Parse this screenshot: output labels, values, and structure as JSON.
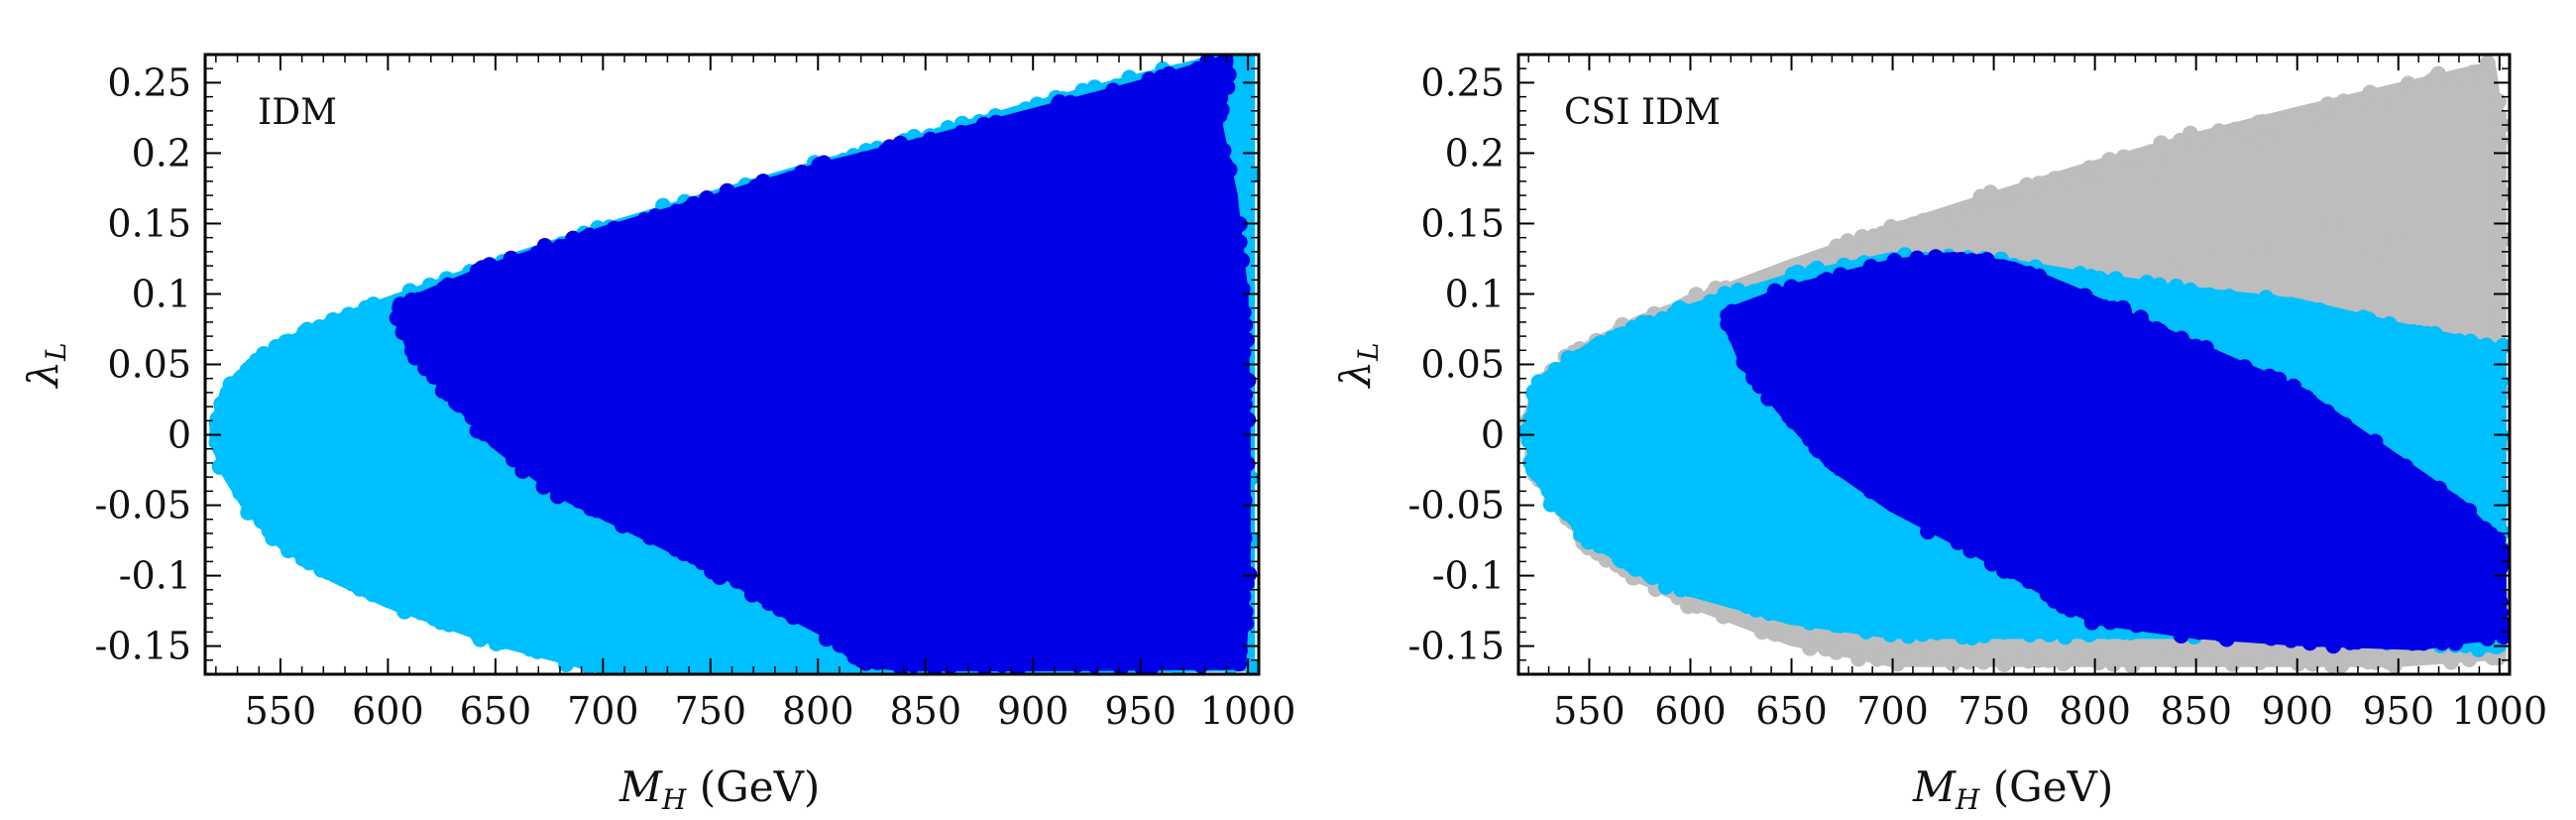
{
  "colors": {
    "background": "#ffffff",
    "frame": "#000000",
    "light_blue": "#00bfff",
    "dark_blue": "#0000e6",
    "gray": "#bdbdbd"
  },
  "chart_data": [
    {
      "type": "scatter",
      "panel_label": "IDM",
      "xlabel": "M_H (GeV)",
      "ylabel": "λ_L",
      "xlim": [
        515,
        1005
      ],
      "ylim": [
        -0.17,
        0.27
      ],
      "x_ticks": [
        550,
        600,
        650,
        700,
        750,
        800,
        850,
        900,
        950,
        1000
      ],
      "y_ticks": [
        -0.15,
        -0.1,
        -0.05,
        0,
        0.05,
        0.1,
        0.15,
        0.2,
        0.25
      ],
      "x_tick_labels": [
        "550",
        "600",
        "650",
        "700",
        "750",
        "800",
        "850",
        "900",
        "950",
        "1000"
      ],
      "y_tick_labels": [
        "-0.15",
        "-0.1",
        "-0.05",
        "0",
        "0.05",
        "0.1",
        "0.15",
        "0.2",
        "0.25"
      ],
      "grid": false,
      "regions": [
        {
          "color": "#00bfff",
          "boundary": [
            [
              520,
              0
            ],
            [
              525,
              0.03
            ],
            [
              535,
              0.045
            ],
            [
              550,
              0.062
            ],
            [
              575,
              0.08
            ],
            [
              600,
              0.093
            ],
            [
              650,
              0.12
            ],
            [
              700,
              0.145
            ],
            [
              750,
              0.168
            ],
            [
              800,
              0.19
            ],
            [
              850,
              0.21
            ],
            [
              900,
              0.232
            ],
            [
              950,
              0.252
            ],
            [
              1000,
              0.27
            ],
            [
              1000,
              -0.163
            ],
            [
              900,
              -0.165
            ],
            [
              800,
              -0.165
            ],
            [
              750,
              -0.165
            ],
            [
              700,
              -0.165
            ],
            [
              650,
              -0.145
            ],
            [
              600,
              -0.118
            ],
            [
              575,
              -0.1
            ],
            [
              550,
              -0.075
            ],
            [
              535,
              -0.05
            ],
            [
              525,
              -0.025
            ]
          ]
        },
        {
          "color": "#0000e6",
          "boundary": [
            [
              605,
              0.09
            ],
            [
              650,
              0.118
            ],
            [
              700,
              0.143
            ],
            [
              750,
              0.165
            ],
            [
              800,
              0.188
            ],
            [
              850,
              0.207
            ],
            [
              900,
              0.227
            ],
            [
              950,
              0.247
            ],
            [
              990,
              0.265
            ],
            [
              985,
              0.22
            ],
            [
              992,
              0.17
            ],
            [
              997,
              0.1
            ],
            [
              998,
              0
            ],
            [
              998,
              -0.1
            ],
            [
              996,
              -0.162
            ],
            [
              900,
              -0.163
            ],
            [
              840,
              -0.163
            ],
            [
              820,
              -0.16
            ],
            [
              805,
              -0.14
            ],
            [
              780,
              -0.12
            ],
            [
              760,
              -0.1
            ],
            [
              720,
              -0.07
            ],
            [
              680,
              -0.04
            ],
            [
              650,
              -0.005
            ],
            [
              630,
              0.03
            ],
            [
              612,
              0.06
            ]
          ]
        }
      ]
    },
    {
      "type": "scatter",
      "panel_label": "CSI IDM",
      "xlabel": "M_H (GeV)",
      "ylabel": "λ_L",
      "xlim": [
        515,
        1005
      ],
      "ylim": [
        -0.17,
        0.27
      ],
      "x_ticks": [
        550,
        600,
        650,
        700,
        750,
        800,
        850,
        900,
        950,
        1000
      ],
      "y_ticks": [
        -0.15,
        -0.1,
        -0.05,
        0,
        0.05,
        0.1,
        0.15,
        0.2,
        0.25
      ],
      "x_tick_labels": [
        "550",
        "600",
        "650",
        "700",
        "750",
        "800",
        "850",
        "900",
        "950",
        "1000"
      ],
      "y_tick_labels": [
        "-0.15",
        "-0.1",
        "-0.05",
        "0",
        "0.05",
        "0.1",
        "0.15",
        "0.2",
        "0.25"
      ],
      "grid": false,
      "regions": [
        {
          "color": "#bdbdbd",
          "boundary": [
            [
              520,
              0
            ],
            [
              525,
              0.03
            ],
            [
              535,
              0.045
            ],
            [
              550,
              0.062
            ],
            [
              575,
              0.08
            ],
            [
              600,
              0.093
            ],
            [
              650,
              0.12
            ],
            [
              700,
              0.145
            ],
            [
              750,
              0.168
            ],
            [
              800,
              0.19
            ],
            [
              850,
              0.21
            ],
            [
              900,
              0.228
            ],
            [
              950,
              0.245
            ],
            [
              995,
              0.26
            ],
            [
              1000,
              0.21
            ],
            [
              1000,
              -0.155
            ],
            [
              950,
              -0.16
            ],
            [
              900,
              -0.16
            ],
            [
              800,
              -0.16
            ],
            [
              750,
              -0.16
            ],
            [
              700,
              -0.16
            ],
            [
              650,
              -0.145
            ],
            [
              600,
              -0.118
            ],
            [
              575,
              -0.1
            ],
            [
              550,
              -0.075
            ],
            [
              535,
              -0.05
            ],
            [
              525,
              -0.025
            ]
          ]
        },
        {
          "color": "#00bfff",
          "boundary": [
            [
              520,
              0
            ],
            [
              525,
              0.03
            ],
            [
              535,
              0.045
            ],
            [
              550,
              0.06
            ],
            [
              575,
              0.075
            ],
            [
              600,
              0.088
            ],
            [
              650,
              0.11
            ],
            [
              700,
              0.125
            ],
            [
              750,
              0.122
            ],
            [
              800,
              0.11
            ],
            [
              850,
              0.1
            ],
            [
              900,
              0.092
            ],
            [
              950,
              0.075
            ],
            [
              1000,
              0.06
            ],
            [
              1000,
              -0.15
            ],
            [
              950,
              -0.145
            ],
            [
              900,
              -0.14
            ],
            [
              850,
              -0.14
            ],
            [
              800,
              -0.14
            ],
            [
              760,
              -0.14
            ],
            [
              700,
              -0.14
            ],
            [
              650,
              -0.13
            ],
            [
              600,
              -0.11
            ],
            [
              575,
              -0.095
            ],
            [
              550,
              -0.072
            ],
            [
              535,
              -0.048
            ],
            [
              525,
              -0.022
            ]
          ]
        },
        {
          "color": "#0000e6",
          "boundary": [
            [
              618,
              0.085
            ],
            [
              650,
              0.102
            ],
            [
              700,
              0.12
            ],
            [
              730,
              0.125
            ],
            [
              760,
              0.118
            ],
            [
              790,
              0.1
            ],
            [
              820,
              0.08
            ],
            [
              860,
              0.055
            ],
            [
              900,
              0.03
            ],
            [
              940,
              -0.01
            ],
            [
              980,
              -0.05
            ],
            [
              1000,
              -0.08
            ],
            [
              1000,
              -0.14
            ],
            [
              960,
              -0.148
            ],
            [
              900,
              -0.145
            ],
            [
              850,
              -0.14
            ],
            [
              800,
              -0.13
            ],
            [
              770,
              -0.105
            ],
            [
              740,
              -0.08
            ],
            [
              700,
              -0.05
            ],
            [
              670,
              -0.02
            ],
            [
              645,
              0.02
            ],
            [
              628,
              0.05
            ]
          ]
        }
      ]
    }
  ]
}
